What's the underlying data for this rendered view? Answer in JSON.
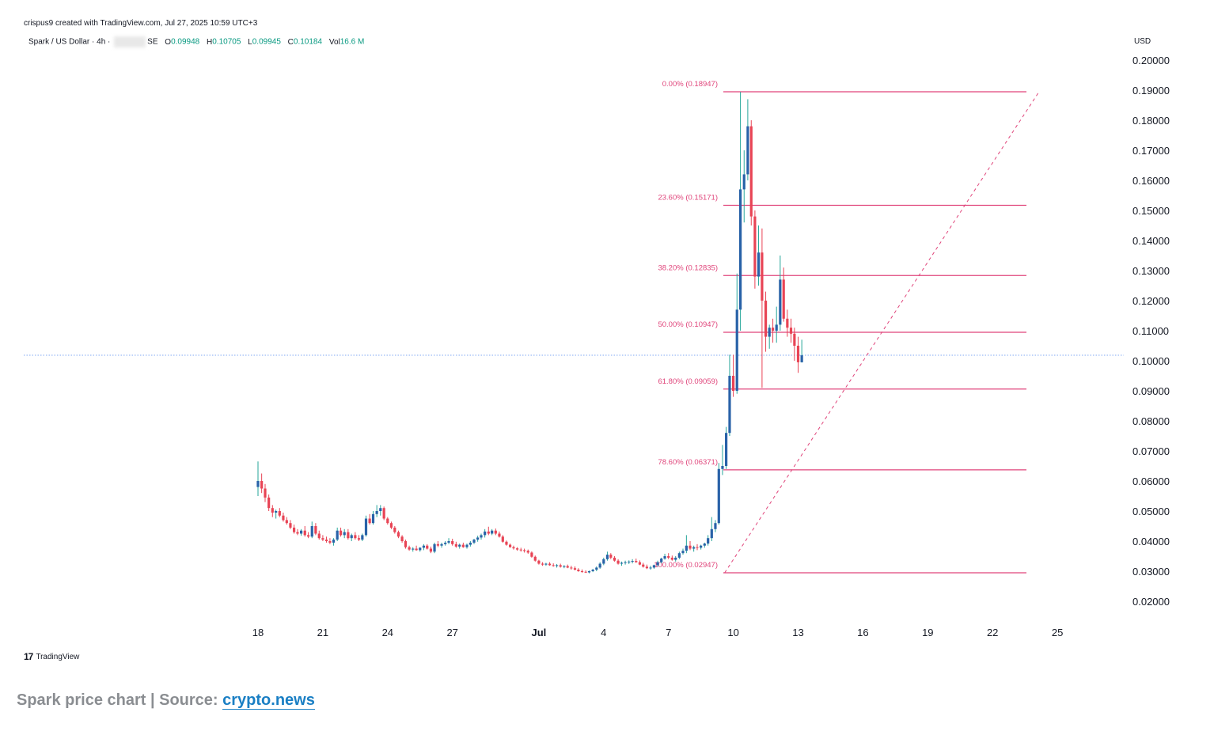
{
  "header": {
    "attribution": "crispus9 created with TradingView.com, Jul 27, 2025 10:59 UTC+3"
  },
  "legend": {
    "symbol": "Spark / US Dollar · 4h · ",
    "exchange_suffix": "SE",
    "o_label": "O",
    "o_value": "0.09948",
    "h_label": "H",
    "h_value": "0.10705",
    "l_label": "L",
    "l_value": "0.09945",
    "c_label": "C",
    "c_value": "0.10184",
    "vol_label": "Vol",
    "vol_value": "16.6 M"
  },
  "currency": "USD",
  "footer": {
    "logo_mark": "17",
    "logo_text": "TradingView"
  },
  "caption": {
    "text": "Spark price chart | Source: ",
    "link": "crypto.news"
  },
  "colors": {
    "up": "#2962a8",
    "down": "#e84455",
    "wick_up": "#26a69a",
    "fib": "#e0457b",
    "price_line": "#5b8def"
  },
  "chart_data": {
    "type": "candlestick",
    "ylim": [
      0.015,
      0.205
    ],
    "yticks": [
      "0.20000",
      "0.19000",
      "0.18000",
      "0.17000",
      "0.16000",
      "0.15000",
      "0.14000",
      "0.13000",
      "0.12000",
      "0.11000",
      "0.10000",
      "0.09000",
      "0.08000",
      "0.07000",
      "0.06000",
      "0.05000",
      "0.04000",
      "0.03000",
      "0.02000"
    ],
    "xticks": [
      {
        "label": "18",
        "day": 0
      },
      {
        "label": "21",
        "day": 3
      },
      {
        "label": "24",
        "day": 6
      },
      {
        "label": "27",
        "day": 9
      },
      {
        "label": "Jul",
        "day": 13,
        "bold": true
      },
      {
        "label": "4",
        "day": 16
      },
      {
        "label": "7",
        "day": 19
      },
      {
        "label": "10",
        "day": 22
      },
      {
        "label": "13",
        "day": 25
      },
      {
        "label": "16",
        "day": 28
      },
      {
        "label": "19",
        "day": 31
      },
      {
        "label": "22",
        "day": 34
      },
      {
        "label": "25",
        "day": 37
      }
    ],
    "fib_levels": [
      {
        "label": "0.00% (0.18947)",
        "value": 0.18947
      },
      {
        "label": "23.60% (0.15171)",
        "value": 0.15171
      },
      {
        "label": "38.20% (0.12835)",
        "value": 0.12835
      },
      {
        "label": "50.00% (0.10947)",
        "value": 0.10947
      },
      {
        "label": "61.80% (0.09059)",
        "value": 0.09059
      },
      {
        "label": "78.60% (0.06371)",
        "value": 0.06371
      },
      {
        "label": "100.00% (0.02947)",
        "value": 0.02947
      }
    ],
    "fib_start": {
      "day": 21.6,
      "value": 0.02947
    },
    "fib_end": {
      "day": 36.15,
      "value": 0.18947
    },
    "current_price": 0.10184,
    "candles": [
      [
        0.0,
        0.058,
        0.0665,
        0.055,
        0.06
      ],
      [
        0.17,
        0.06,
        0.0625,
        0.056,
        0.0575
      ],
      [
        0.33,
        0.0575,
        0.059,
        0.053,
        0.0545
      ],
      [
        0.5,
        0.0545,
        0.0555,
        0.05,
        0.051
      ],
      [
        0.67,
        0.051,
        0.052,
        0.048,
        0.0495
      ],
      [
        0.83,
        0.0495,
        0.0505,
        0.0475,
        0.05
      ],
      [
        1.0,
        0.05,
        0.051,
        0.048,
        0.0485
      ],
      [
        1.17,
        0.0485,
        0.0495,
        0.0465,
        0.047
      ],
      [
        1.33,
        0.047,
        0.048,
        0.0455,
        0.046
      ],
      [
        1.5,
        0.046,
        0.047,
        0.044,
        0.0445
      ],
      [
        1.67,
        0.0445,
        0.0455,
        0.0425,
        0.043
      ],
      [
        1.83,
        0.043,
        0.044,
        0.042,
        0.0425
      ],
      [
        2.0,
        0.0425,
        0.044,
        0.0418,
        0.0435
      ],
      [
        2.17,
        0.0435,
        0.045,
        0.0415,
        0.042
      ],
      [
        2.33,
        0.042,
        0.043,
        0.041,
        0.0415
      ],
      [
        2.5,
        0.0415,
        0.0465,
        0.041,
        0.045
      ],
      [
        2.67,
        0.045,
        0.046,
        0.042,
        0.0425
      ],
      [
        2.83,
        0.0425,
        0.0435,
        0.0405,
        0.041
      ],
      [
        3.0,
        0.041,
        0.042,
        0.04,
        0.0405
      ],
      [
        3.17,
        0.0405,
        0.0415,
        0.0395,
        0.04
      ],
      [
        3.33,
        0.04,
        0.041,
        0.039,
        0.0395
      ],
      [
        3.5,
        0.0395,
        0.041,
        0.0385,
        0.0405
      ],
      [
        3.67,
        0.0405,
        0.0445,
        0.04,
        0.0435
      ],
      [
        3.83,
        0.0435,
        0.0445,
        0.0415,
        0.042
      ],
      [
        4.0,
        0.042,
        0.044,
        0.041,
        0.043
      ],
      [
        4.17,
        0.043,
        0.044,
        0.0405,
        0.041
      ],
      [
        4.33,
        0.041,
        0.0425,
        0.04,
        0.042
      ],
      [
        4.5,
        0.042,
        0.043,
        0.0405,
        0.041
      ],
      [
        4.67,
        0.041,
        0.042,
        0.04,
        0.0405
      ],
      [
        4.83,
        0.0405,
        0.0425,
        0.04,
        0.042
      ],
      [
        5.0,
        0.042,
        0.0485,
        0.0415,
        0.0475
      ],
      [
        5.17,
        0.0475,
        0.049,
        0.0455,
        0.046
      ],
      [
        5.33,
        0.046,
        0.05,
        0.0455,
        0.049
      ],
      [
        5.5,
        0.049,
        0.052,
        0.048,
        0.05
      ],
      [
        5.67,
        0.05,
        0.052,
        0.0485,
        0.051
      ],
      [
        5.83,
        0.051,
        0.0515,
        0.047,
        0.0475
      ],
      [
        6.0,
        0.0475,
        0.048,
        0.0455,
        0.046
      ],
      [
        6.17,
        0.046,
        0.0465,
        0.044,
        0.0445
      ],
      [
        6.33,
        0.0445,
        0.045,
        0.0425,
        0.043
      ],
      [
        6.5,
        0.043,
        0.0435,
        0.041,
        0.0415
      ],
      [
        6.67,
        0.0415,
        0.042,
        0.0395,
        0.04
      ],
      [
        6.83,
        0.04,
        0.0405,
        0.0375,
        0.038
      ],
      [
        7.0,
        0.038,
        0.0385,
        0.0368,
        0.0372
      ],
      [
        7.17,
        0.0372,
        0.038,
        0.0365,
        0.0375
      ],
      [
        7.33,
        0.0375,
        0.0385,
        0.0368,
        0.037
      ],
      [
        7.5,
        0.037,
        0.038,
        0.0365,
        0.0378
      ],
      [
        7.67,
        0.0378,
        0.039,
        0.037,
        0.0385
      ],
      [
        7.83,
        0.0385,
        0.039,
        0.0372,
        0.0375
      ],
      [
        8.0,
        0.0375,
        0.0382,
        0.036,
        0.0365
      ],
      [
        8.17,
        0.0365,
        0.0395,
        0.036,
        0.039
      ],
      [
        8.33,
        0.039,
        0.04,
        0.038,
        0.0385
      ],
      [
        8.5,
        0.0385,
        0.0395,
        0.0378,
        0.039
      ],
      [
        8.67,
        0.039,
        0.04,
        0.0385,
        0.0395
      ],
      [
        8.83,
        0.0395,
        0.041,
        0.039,
        0.04
      ],
      [
        9.0,
        0.04,
        0.0408,
        0.0385,
        0.039
      ],
      [
        9.17,
        0.039,
        0.0398,
        0.0378,
        0.0382
      ],
      [
        9.33,
        0.0382,
        0.0392,
        0.0375,
        0.0388
      ],
      [
        9.5,
        0.0388,
        0.0395,
        0.0378,
        0.038
      ],
      [
        9.67,
        0.038,
        0.0392,
        0.0375,
        0.0388
      ],
      [
        9.83,
        0.0388,
        0.04,
        0.0382,
        0.0395
      ],
      [
        10.0,
        0.0395,
        0.0408,
        0.039,
        0.0405
      ],
      [
        10.17,
        0.0405,
        0.0418,
        0.0398,
        0.0412
      ],
      [
        10.33,
        0.0412,
        0.0425,
        0.0405,
        0.042
      ],
      [
        10.5,
        0.042,
        0.044,
        0.0412,
        0.0432
      ],
      [
        10.67,
        0.0432,
        0.0448,
        0.042,
        0.0425
      ],
      [
        10.83,
        0.0425,
        0.044,
        0.042,
        0.0435
      ],
      [
        11.0,
        0.0435,
        0.0442,
        0.042,
        0.0425
      ],
      [
        11.17,
        0.0425,
        0.0432,
        0.0412,
        0.0415
      ],
      [
        11.33,
        0.0415,
        0.042,
        0.0395,
        0.0398
      ],
      [
        11.5,
        0.0398,
        0.0402,
        0.0385,
        0.0388
      ],
      [
        11.67,
        0.0388,
        0.0392,
        0.0378,
        0.038
      ],
      [
        11.83,
        0.038,
        0.0385,
        0.0372,
        0.0376
      ],
      [
        12.0,
        0.0376,
        0.038,
        0.0368,
        0.0372
      ],
      [
        12.17,
        0.0372,
        0.0378,
        0.0365,
        0.037
      ],
      [
        12.33,
        0.037,
        0.0375,
        0.0362,
        0.0368
      ],
      [
        12.5,
        0.0368,
        0.0372,
        0.0358,
        0.0362
      ],
      [
        12.67,
        0.0362,
        0.0366,
        0.0345,
        0.0348
      ],
      [
        12.83,
        0.0348,
        0.0352,
        0.0332,
        0.0335
      ],
      [
        13.0,
        0.0335,
        0.0338,
        0.0322,
        0.0325
      ],
      [
        13.17,
        0.0325,
        0.033,
        0.0318,
        0.0322
      ],
      [
        13.33,
        0.0322,
        0.0328,
        0.0318,
        0.0325
      ],
      [
        13.5,
        0.0325,
        0.033,
        0.0318,
        0.032
      ],
      [
        13.67,
        0.032,
        0.0326,
        0.0315,
        0.0318
      ],
      [
        13.83,
        0.0318,
        0.0324,
        0.0312,
        0.032
      ],
      [
        14.0,
        0.032,
        0.0325,
        0.0312,
        0.0315
      ],
      [
        14.17,
        0.0315,
        0.032,
        0.031,
        0.0317
      ],
      [
        14.33,
        0.0317,
        0.0322,
        0.031,
        0.0312
      ],
      [
        14.5,
        0.0312,
        0.0318,
        0.0305,
        0.031
      ],
      [
        14.67,
        0.031,
        0.0316,
        0.0303,
        0.0305
      ],
      [
        14.83,
        0.0305,
        0.031,
        0.0298,
        0.03
      ],
      [
        15.0,
        0.03,
        0.0306,
        0.0295,
        0.0298
      ],
      [
        15.17,
        0.0298,
        0.0303,
        0.0294,
        0.0296
      ],
      [
        15.33,
        0.0296,
        0.0302,
        0.0293,
        0.03
      ],
      [
        15.5,
        0.03,
        0.0308,
        0.0297,
        0.0305
      ],
      [
        15.67,
        0.0305,
        0.0316,
        0.03,
        0.0312
      ],
      [
        15.83,
        0.0312,
        0.033,
        0.0308,
        0.0325
      ],
      [
        16.0,
        0.0325,
        0.0345,
        0.032,
        0.034
      ],
      [
        16.17,
        0.034,
        0.0365,
        0.0335,
        0.0355
      ],
      [
        16.33,
        0.0355,
        0.036,
        0.034,
        0.0345
      ],
      [
        16.5,
        0.0345,
        0.035,
        0.0332,
        0.0335
      ],
      [
        16.67,
        0.0335,
        0.034,
        0.0322,
        0.0325
      ],
      [
        16.83,
        0.0325,
        0.0332,
        0.0318,
        0.0328
      ],
      [
        17.0,
        0.0328,
        0.0335,
        0.0322,
        0.033
      ],
      [
        17.17,
        0.033,
        0.0336,
        0.0324,
        0.0332
      ],
      [
        17.33,
        0.0332,
        0.034,
        0.0326,
        0.0334
      ],
      [
        17.5,
        0.0334,
        0.0342,
        0.0328,
        0.033
      ],
      [
        17.67,
        0.033,
        0.0336,
        0.032,
        0.0322
      ],
      [
        17.83,
        0.0322,
        0.0328,
        0.0312,
        0.0315
      ],
      [
        18.0,
        0.0315,
        0.0322,
        0.0307,
        0.031
      ],
      [
        18.17,
        0.031,
        0.0318,
        0.0305,
        0.0312
      ],
      [
        18.33,
        0.0312,
        0.0322,
        0.0308,
        0.032
      ],
      [
        18.5,
        0.032,
        0.0335,
        0.0315,
        0.033
      ],
      [
        18.67,
        0.033,
        0.0345,
        0.0326,
        0.0342
      ],
      [
        18.83,
        0.0342,
        0.0358,
        0.0338,
        0.035
      ],
      [
        19.0,
        0.035,
        0.036,
        0.034,
        0.0345
      ],
      [
        19.17,
        0.0345,
        0.0352,
        0.0335,
        0.0338
      ],
      [
        19.33,
        0.0338,
        0.035,
        0.0332,
        0.0345
      ],
      [
        19.5,
        0.0345,
        0.0365,
        0.034,
        0.036
      ],
      [
        19.67,
        0.036,
        0.0375,
        0.0355,
        0.0368
      ],
      [
        19.83,
        0.0368,
        0.042,
        0.036,
        0.0385
      ],
      [
        20.0,
        0.0385,
        0.04,
        0.037,
        0.0375
      ],
      [
        20.17,
        0.0375,
        0.0385,
        0.0365,
        0.038
      ],
      [
        20.33,
        0.038,
        0.039,
        0.037,
        0.0378
      ],
      [
        20.5,
        0.0378,
        0.0388,
        0.0372,
        0.0385
      ],
      [
        20.67,
        0.0385,
        0.0395,
        0.0378,
        0.0392
      ],
      [
        20.83,
        0.0392,
        0.042,
        0.0385,
        0.041
      ],
      [
        21.0,
        0.041,
        0.048,
        0.04,
        0.044
      ],
      [
        21.17,
        0.044,
        0.047,
        0.043,
        0.046
      ],
      [
        21.33,
        0.046,
        0.066,
        0.0455,
        0.064
      ],
      [
        21.5,
        0.064,
        0.072,
        0.062,
        0.065
      ],
      [
        21.67,
        0.065,
        0.078,
        0.064,
        0.076
      ],
      [
        21.83,
        0.076,
        0.102,
        0.075,
        0.095
      ],
      [
        22.0,
        0.095,
        0.102,
        0.088,
        0.09
      ],
      [
        22.17,
        0.09,
        0.129,
        0.089,
        0.117
      ],
      [
        22.33,
        0.117,
        0.1894,
        0.11,
        0.157
      ],
      [
        22.5,
        0.157,
        0.17,
        0.146,
        0.162
      ],
      [
        22.67,
        0.162,
        0.187,
        0.16,
        0.178
      ],
      [
        22.83,
        0.178,
        0.18,
        0.145,
        0.148
      ],
      [
        23.0,
        0.148,
        0.15,
        0.124,
        0.128
      ],
      [
        23.17,
        0.128,
        0.145,
        0.125,
        0.136
      ],
      [
        23.33,
        0.136,
        0.144,
        0.091,
        0.12
      ],
      [
        23.5,
        0.12,
        0.123,
        0.103,
        0.108
      ],
      [
        23.67,
        0.108,
        0.112,
        0.104,
        0.111
      ],
      [
        23.83,
        0.111,
        0.114,
        0.106,
        0.11
      ],
      [
        24.0,
        0.11,
        0.118,
        0.106,
        0.112
      ],
      [
        24.17,
        0.112,
        0.135,
        0.11,
        0.127
      ],
      [
        24.33,
        0.127,
        0.131,
        0.113,
        0.114
      ],
      [
        24.5,
        0.114,
        0.117,
        0.108,
        0.111
      ],
      [
        24.67,
        0.111,
        0.114,
        0.106,
        0.109
      ],
      [
        24.83,
        0.109,
        0.111,
        0.1,
        0.105
      ],
      [
        25.0,
        0.105,
        0.108,
        0.096,
        0.0995
      ],
      [
        25.17,
        0.0995,
        0.107,
        0.0994,
        0.1018
      ]
    ]
  }
}
